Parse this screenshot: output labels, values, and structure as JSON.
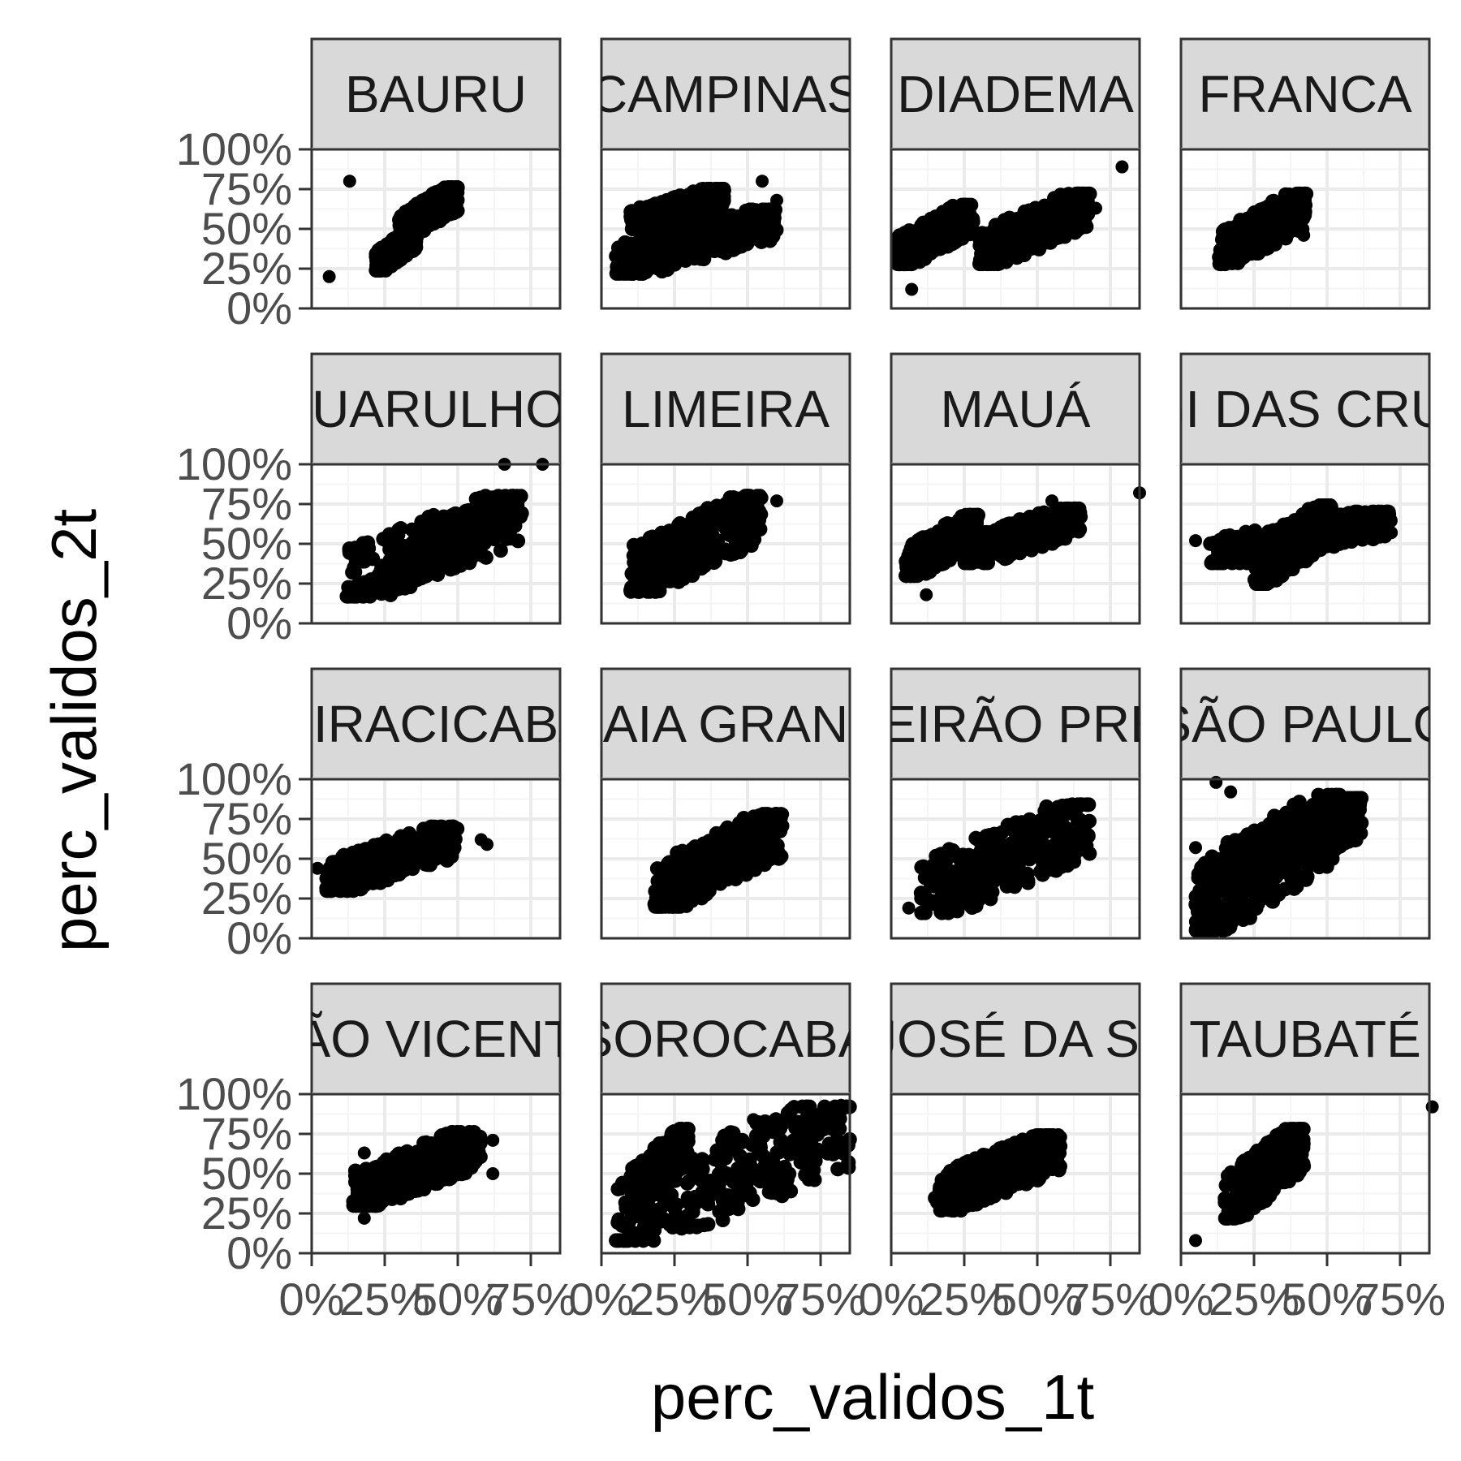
{
  "chart_data": {
    "type": "scatter",
    "facet_layout": "4x4 grid",
    "xlabel": "perc_validos_1t",
    "ylabel": "perc_validos_2t",
    "xlim": [
      0,
      0.85
    ],
    "ylim": [
      0,
      1.0
    ],
    "x_ticks": [
      {
        "value": 0,
        "label": "0%"
      },
      {
        "value": 0.25,
        "label": "25%"
      },
      {
        "value": 0.5,
        "label": "50%"
      },
      {
        "value": 0.75,
        "label": "75%"
      }
    ],
    "y_ticks": [
      {
        "value": 0,
        "label": "0%"
      },
      {
        "value": 0.25,
        "label": "25%"
      },
      {
        "value": 0.5,
        "label": "50%"
      },
      {
        "value": 0.75,
        "label": "75%"
      },
      {
        "value": 1.0,
        "label": "100%"
      }
    ],
    "grid": true,
    "colors": {
      "point": "#000000",
      "panel_background": "#ffffff",
      "grid_major": "#ebebeb",
      "grid_minor": "#f5f5f5",
      "strip_fill": "#d9d9d9",
      "border": "#333333",
      "tick_text": "#4d4d4d"
    },
    "facets": [
      {
        "label": "BAURU",
        "clusters": [
          {
            "x": [
              0.22,
              0.36
            ],
            "y": [
              0.24,
              0.5
            ]
          },
          {
            "x": [
              0.3,
              0.5
            ],
            "y": [
              0.45,
              0.76
            ]
          }
        ],
        "outliers": [
          [
            0.06,
            0.2
          ],
          [
            0.13,
            0.8
          ]
        ]
      },
      {
        "label": "CAMPINAS",
        "clusters": [
          {
            "x": [
              0.05,
              0.6
            ],
            "y": [
              0.22,
              0.62
            ]
          },
          {
            "x": [
              0.1,
              0.42
            ],
            "y": [
              0.5,
              0.75
            ]
          }
        ],
        "outliers": [
          [
            0.55,
            0.8
          ],
          [
            0.6,
            0.68
          ]
        ]
      },
      {
        "label": "DIADEMA",
        "clusters": [
          {
            "x": [
              0.02,
              0.28
            ],
            "y": [
              0.28,
              0.65
            ]
          },
          {
            "x": [
              0.3,
              0.68
            ],
            "y": [
              0.28,
              0.72
            ]
          }
        ],
        "outliers": [
          [
            0.79,
            0.89
          ],
          [
            0.7,
            0.63
          ],
          [
            0.07,
            0.12
          ]
        ]
      },
      {
        "label": "FRANCA",
        "clusters": [
          {
            "x": [
              0.13,
              0.43
            ],
            "y": [
              0.28,
              0.72
            ]
          }
        ],
        "outliers": [
          [
            0.42,
            0.46
          ]
        ]
      },
      {
        "label": "GUARULHOS",
        "clusters": [
          {
            "x": [
              0.12,
              0.72
            ],
            "y": [
              0.17,
              0.8
            ]
          }
        ],
        "outliers": [
          [
            0.66,
            1.0
          ],
          [
            0.79,
            1.0
          ]
        ]
      },
      {
        "label": "LIMEIRA",
        "clusters": [
          {
            "x": [
              0.1,
              0.55
            ],
            "y": [
              0.2,
              0.8
            ]
          }
        ],
        "outliers": [
          [
            0.6,
            0.77
          ]
        ]
      },
      {
        "label": "MAUÁ",
        "clusters": [
          {
            "x": [
              0.05,
              0.3
            ],
            "y": [
              0.3,
              0.68
            ]
          },
          {
            "x": [
              0.25,
              0.65
            ],
            "y": [
              0.38,
              0.72
            ]
          }
        ],
        "outliers": [
          [
            0.85,
            0.82
          ],
          [
            0.12,
            0.18
          ],
          [
            0.55,
            0.77
          ]
        ]
      },
      {
        "label": "MOGI DAS CRUZES",
        "clusters": [
          {
            "x": [
              0.1,
              0.72
            ],
            "y": [
              0.38,
              0.7
            ]
          },
          {
            "x": [
              0.25,
              0.52
            ],
            "y": [
              0.25,
              0.74
            ]
          }
        ],
        "outliers": [
          [
            0.05,
            0.52
          ],
          [
            0.72,
            0.57
          ]
        ]
      },
      {
        "label": "PIRACICABA",
        "clusters": [
          {
            "x": [
              0.05,
              0.5
            ],
            "y": [
              0.3,
              0.7
            ]
          }
        ],
        "outliers": [
          [
            0.6,
            0.59
          ],
          [
            0.58,
            0.62
          ],
          [
            0.02,
            0.44
          ]
        ]
      },
      {
        "label": "PRAIA GRANDE",
        "clusters": [
          {
            "x": [
              0.18,
              0.62
            ],
            "y": [
              0.2,
              0.78
            ]
          }
        ],
        "outliers": [
          [
            0.62,
            0.78
          ]
        ]
      },
      {
        "label": "RIBEIRÃO PRETO",
        "clusters": [
          {
            "x": [
              0.1,
              0.68
            ],
            "y": [
              0.16,
              0.84
            ]
          }
        ],
        "outliers": [
          [
            0.06,
            0.19
          ]
        ]
      },
      {
        "label": "SÃO PAULO",
        "clusters": [
          {
            "x": [
              0.05,
              0.55
            ],
            "y": [
              0.05,
              0.9
            ]
          },
          {
            "x": [
              0.15,
              0.62
            ],
            "y": [
              0.35,
              0.88
            ]
          }
        ],
        "outliers": [
          [
            0.12,
            0.98
          ],
          [
            0.17,
            0.92
          ],
          [
            0.05,
            0.57
          ],
          [
            0.05,
            0.06
          ]
        ]
      },
      {
        "label": "SÃO VICENTE",
        "clusters": [
          {
            "x": [
              0.14,
              0.58
            ],
            "y": [
              0.3,
              0.76
            ]
          }
        ],
        "outliers": [
          [
            0.18,
            0.63
          ],
          [
            0.62,
            0.71
          ],
          [
            0.62,
            0.5
          ],
          [
            0.18,
            0.22
          ],
          [
            0.16,
            0.3
          ]
        ]
      },
      {
        "label": "SOROCABA",
        "clusters": [
          {
            "x": [
              0.05,
              0.85
            ],
            "y": [
              0.08,
              0.92
            ]
          },
          {
            "x": [
              0.1,
              0.3
            ],
            "y": [
              0.3,
              0.78
            ]
          }
        ],
        "outliers": [
          [
            0.82,
            0.93
          ],
          [
            0.52,
            0.84
          ]
        ]
      },
      {
        "label": "SÃO JOSÉ DA SERRA",
        "clusters": [
          {
            "x": [
              0.15,
              0.58
            ],
            "y": [
              0.27,
              0.74
            ]
          }
        ],
        "outliers": [
          [
            0.18,
            0.38
          ],
          [
            0.58,
            0.73
          ]
        ]
      },
      {
        "label": "TAUBATÉ",
        "clusters": [
          {
            "x": [
              0.15,
              0.42
            ],
            "y": [
              0.22,
              0.78
            ]
          }
        ],
        "outliers": [
          [
            0.05,
            0.08
          ],
          [
            0.86,
            0.92
          ],
          [
            0.42,
            0.68
          ]
        ]
      }
    ]
  }
}
